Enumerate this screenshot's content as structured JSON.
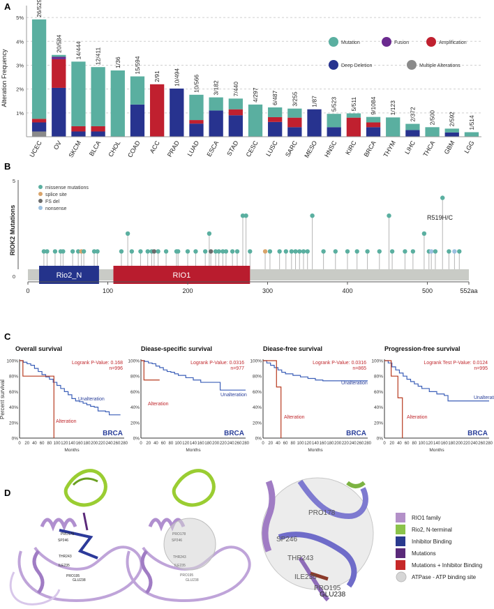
{
  "panel_labels": {
    "a": "A",
    "b": "B",
    "c": "C",
    "d": "D"
  },
  "colors": {
    "mutation": "#5aafa0",
    "fusion": "#6b2a8f",
    "amplification": "#c0202f",
    "deep_deletion": "#27338f",
    "multiple": "#8a8a8a",
    "alteration_line": "#b73a1f",
    "unalteration_line": "#3b5fb8",
    "missense": "#5aafa0",
    "splice": "#d9a46b",
    "fsdel": "#6b6b6b",
    "nonsense": "#9cc0e0",
    "rio2_domain": "#24338b",
    "rio1_domain": "#b91c2e",
    "protein_bar": "#c9cbc6"
  },
  "chart_data": [
    {
      "type": "bar",
      "id": "alteration-frequency",
      "ylabel": "Alteration Frequency",
      "ylim": [
        0,
        5.5
      ],
      "yticks": [
        "1%",
        "2%",
        "3%",
        "4%",
        "5%"
      ],
      "grid": true,
      "legend": [
        "Mutation",
        "Fusion",
        "Amplification",
        "Deep Deletion",
        "Multiple Alterations"
      ],
      "categories": [
        "UCEC",
        "OV",
        "SKCM",
        "BLCA",
        "CHOL",
        "COAD",
        "ACC",
        "PRAD",
        "LUAD",
        "ESCA",
        "STAD",
        "CESC",
        "LUSC",
        "SARC",
        "MESO",
        "HNSC",
        "KIRC",
        "BRCA",
        "THYM",
        "LIHC",
        "THCA",
        "GBM",
        "LGG"
      ],
      "counts": [
        "26/529",
        "20/584",
        "14/444",
        "12/411",
        "1/36",
        "15/594",
        "2/91",
        "10/494",
        "10/566",
        "3/182",
        "7/440",
        "4/297",
        "6/487",
        "3/255",
        "1/87",
        "5/523",
        "5/511",
        "9/1084",
        "1/123",
        "2/372",
        "2/500",
        "2/592",
        "1/514"
      ],
      "series": [
        {
          "name": "Multiple Alterations",
          "values": [
            0.22,
            0,
            0,
            0,
            0,
            0,
            0,
            0,
            0,
            0,
            0,
            0,
            0,
            0,
            0,
            0,
            0,
            0,
            0,
            0,
            0,
            0,
            0
          ]
        },
        {
          "name": "Deep Deletion",
          "values": [
            0.38,
            2.05,
            0.22,
            0.22,
            0,
            1.35,
            0,
            2.02,
            0.55,
            1.1,
            0.9,
            0,
            0.62,
            0.4,
            1.15,
            0.4,
            0,
            0.4,
            0,
            0.28,
            0,
            0.18,
            0
          ]
        },
        {
          "name": "Amplification",
          "values": [
            0.15,
            1.2,
            0.22,
            0.22,
            0,
            0,
            2.2,
            0,
            0.15,
            0,
            0.25,
            0,
            0.2,
            0.4,
            0,
            0,
            0.8,
            0.2,
            0,
            0,
            0,
            0,
            0
          ]
        },
        {
          "name": "Fusion",
          "values": [
            0,
            0.1,
            0,
            0,
            0,
            0,
            0,
            0,
            0,
            0,
            0,
            0,
            0,
            0,
            0,
            0,
            0,
            0,
            0,
            0,
            0,
            0,
            0
          ]
        },
        {
          "name": "Mutation",
          "values": [
            4.17,
            0.08,
            2.71,
            2.48,
            2.78,
            1.18,
            0,
            0,
            1.06,
            0.55,
            0.45,
            1.35,
            0.41,
            0.38,
            0,
            0.56,
            0.18,
            0.23,
            0.81,
            0.26,
            0.4,
            0.16,
            0.19
          ]
        }
      ]
    },
    {
      "type": "scatter",
      "id": "riok2-lollipop",
      "ylabel": "RIOK2 Mutations",
      "ylim": [
        0,
        5
      ],
      "xlim": [
        0,
        552
      ],
      "xticks": [
        "0",
        "100",
        "200",
        "300",
        "400",
        "500",
        "552aa"
      ],
      "ymax_label": "5",
      "ymin_label": "0",
      "legend": [
        "missense mutations",
        "splice site",
        "FS del",
        "nonsense"
      ],
      "annotation": "R519H/C",
      "domains": [
        {
          "name": "Rio2_N",
          "start": 14,
          "end": 89
        },
        {
          "name": "RIO1",
          "start": 107,
          "end": 278
        }
      ],
      "points": [
        {
          "pos": 20,
          "count": 1,
          "kind": "missense"
        },
        {
          "pos": 24,
          "count": 1,
          "kind": "missense"
        },
        {
          "pos": 34,
          "count": 1,
          "kind": "missense"
        },
        {
          "pos": 41,
          "count": 1,
          "kind": "missense"
        },
        {
          "pos": 44,
          "count": 1,
          "kind": "missense"
        },
        {
          "pos": 56,
          "count": 1,
          "kind": "missense"
        },
        {
          "pos": 63,
          "count": 1,
          "kind": "missense"
        },
        {
          "pos": 67,
          "count": 1,
          "kind": "splice"
        },
        {
          "pos": 70,
          "count": 1,
          "kind": "missense"
        },
        {
          "pos": 83,
          "count": 1,
          "kind": "missense"
        },
        {
          "pos": 87,
          "count": 1,
          "kind": "missense"
        },
        {
          "pos": 117,
          "count": 1,
          "kind": "missense"
        },
        {
          "pos": 125,
          "count": 2,
          "kind": "missense"
        },
        {
          "pos": 130,
          "count": 1,
          "kind": "missense"
        },
        {
          "pos": 141,
          "count": 1,
          "kind": "missense"
        },
        {
          "pos": 150,
          "count": 1,
          "kind": "missense"
        },
        {
          "pos": 155,
          "count": 1,
          "kind": "missense"
        },
        {
          "pos": 158,
          "count": 1,
          "kind": "fsdel"
        },
        {
          "pos": 163,
          "count": 1,
          "kind": "missense"
        },
        {
          "pos": 173,
          "count": 1,
          "kind": "missense"
        },
        {
          "pos": 186,
          "count": 1,
          "kind": "missense"
        },
        {
          "pos": 188,
          "count": 1,
          "kind": "missense"
        },
        {
          "pos": 200,
          "count": 1,
          "kind": "missense"
        },
        {
          "pos": 210,
          "count": 1,
          "kind": "missense"
        },
        {
          "pos": 222,
          "count": 1,
          "kind": "missense"
        },
        {
          "pos": 227,
          "count": 2,
          "kind": "missense"
        },
        {
          "pos": 229,
          "count": 1,
          "kind": "fsdel"
        },
        {
          "pos": 235,
          "count": 1,
          "kind": "missense"
        },
        {
          "pos": 239,
          "count": 1,
          "kind": "missense"
        },
        {
          "pos": 244,
          "count": 1,
          "kind": "missense"
        },
        {
          "pos": 248,
          "count": 1,
          "kind": "missense"
        },
        {
          "pos": 256,
          "count": 1,
          "kind": "missense"
        },
        {
          "pos": 262,
          "count": 1,
          "kind": "missense"
        },
        {
          "pos": 269,
          "count": 3,
          "kind": "missense"
        },
        {
          "pos": 273,
          "count": 3,
          "kind": "missense"
        },
        {
          "pos": 278,
          "count": 1,
          "kind": "missense"
        },
        {
          "pos": 297,
          "count": 1,
          "kind": "splice"
        },
        {
          "pos": 303,
          "count": 1,
          "kind": "missense"
        },
        {
          "pos": 315,
          "count": 1,
          "kind": "missense"
        },
        {
          "pos": 323,
          "count": 1,
          "kind": "missense"
        },
        {
          "pos": 330,
          "count": 1,
          "kind": "missense"
        },
        {
          "pos": 335,
          "count": 1,
          "kind": "missense"
        },
        {
          "pos": 340,
          "count": 1,
          "kind": "missense"
        },
        {
          "pos": 345,
          "count": 1,
          "kind": "missense"
        },
        {
          "pos": 350,
          "count": 1,
          "kind": "missense"
        },
        {
          "pos": 356,
          "count": 3,
          "kind": "missense"
        },
        {
          "pos": 370,
          "count": 1,
          "kind": "missense"
        },
        {
          "pos": 385,
          "count": 1,
          "kind": "missense"
        },
        {
          "pos": 400,
          "count": 1,
          "kind": "missense"
        },
        {
          "pos": 412,
          "count": 1,
          "kind": "missense"
        },
        {
          "pos": 425,
          "count": 1,
          "kind": "missense"
        },
        {
          "pos": 440,
          "count": 1,
          "kind": "missense"
        },
        {
          "pos": 452,
          "count": 3,
          "kind": "missense"
        },
        {
          "pos": 456,
          "count": 1,
          "kind": "missense"
        },
        {
          "pos": 472,
          "count": 1,
          "kind": "missense"
        },
        {
          "pos": 482,
          "count": 1,
          "kind": "missense"
        },
        {
          "pos": 496,
          "count": 2,
          "kind": "missense"
        },
        {
          "pos": 502,
          "count": 1,
          "kind": "missense"
        },
        {
          "pos": 505,
          "count": 1,
          "kind": "nonsense"
        },
        {
          "pos": 510,
          "count": 1,
          "kind": "missense"
        },
        {
          "pos": 519,
          "count": 4,
          "kind": "missense"
        },
        {
          "pos": 527,
          "count": 1,
          "kind": "missense"
        },
        {
          "pos": 534,
          "count": 1,
          "kind": "nonsense"
        },
        {
          "pos": 540,
          "count": 1,
          "kind": "missense"
        }
      ]
    },
    {
      "type": "line",
      "id": "km-overall",
      "title": "Overall survival",
      "pvalue": "Logrank P-Value: 0.168",
      "n": "n=996",
      "dataset": "BRCA",
      "ylabel": "Percent survival",
      "xlabel": "Months",
      "show_ylabel": true,
      "xlim": [
        0,
        280
      ],
      "xticks": [
        "0",
        "20",
        "40",
        "60",
        "80",
        "100",
        "120",
        "140",
        "160",
        "180",
        "200",
        "220",
        "240",
        "260",
        "280"
      ],
      "yticks": [
        "0%",
        "20%",
        "40%",
        "60%",
        "80%",
        "100%"
      ],
      "series": [
        {
          "name": "Unalteration",
          "x": [
            0,
            10,
            20,
            30,
            40,
            50,
            60,
            70,
            80,
            90,
            100,
            110,
            120,
            130,
            140,
            150,
            160,
            170,
            180,
            190,
            200,
            210,
            220,
            230,
            240,
            250,
            260,
            270
          ],
          "y": [
            100,
            98,
            96,
            94,
            90,
            86,
            82,
            79,
            76,
            72,
            68,
            64,
            60,
            56,
            51,
            48,
            47,
            45,
            43,
            41,
            40,
            35,
            35,
            34,
            30,
            30,
            30,
            30
          ]
        },
        {
          "name": "Alteration",
          "x": [
            0,
            9,
            9,
            92,
            92
          ],
          "y": [
            100,
            100,
            80,
            80,
            0
          ]
        }
      ],
      "labels": {
        "unalt": "Unalteration",
        "alt": "Alteration"
      }
    },
    {
      "type": "line",
      "id": "km-disease-specific",
      "title": "Diease-specific survival",
      "pvalue": "Logrank P-Value: 0.0316",
      "n": "n=977",
      "dataset": "BRCA",
      "xlabel": "Months",
      "show_ylabel": false,
      "xlim": [
        0,
        280
      ],
      "xticks": [
        "0",
        "20",
        "40",
        "60",
        "80",
        "100",
        "120",
        "140",
        "160",
        "180",
        "200",
        "220",
        "240",
        "260",
        "280"
      ],
      "yticks": [
        "0%",
        "20%",
        "40%",
        "60%",
        "80%",
        "100%"
      ],
      "series": [
        {
          "name": "Unalteration",
          "x": [
            0,
            10,
            20,
            30,
            40,
            50,
            60,
            70,
            80,
            90,
            100,
            120,
            140,
            160,
            180,
            200,
            212,
            212,
            280
          ],
          "y": [
            100,
            99,
            97,
            96,
            93,
            91,
            88,
            86,
            85,
            83,
            81,
            78,
            75,
            72,
            72,
            72,
            72,
            62,
            62
          ]
        },
        {
          "name": "Alteration",
          "x": [
            0,
            8,
            8,
            50
          ],
          "y": [
            100,
            100,
            75,
            75
          ]
        }
      ],
      "labels": {
        "unalt": "Unalteration",
        "alt": "Alteration"
      }
    },
    {
      "type": "line",
      "id": "km-disease-free",
      "title": "Diease-free survival",
      "pvalue": "Logrank P-Value: 0.0316",
      "n": "n=865",
      "dataset": "BRCA",
      "xlabel": "Months",
      "show_ylabel": false,
      "xlim": [
        0,
        280
      ],
      "xticks": [
        "0",
        "20",
        "40",
        "60",
        "80",
        "100",
        "120",
        "140",
        "160",
        "180",
        "200",
        "220",
        "240",
        "260",
        "280"
      ],
      "yticks": [
        "0%",
        "20%",
        "40%",
        "60%",
        "80%",
        "100%"
      ],
      "series": [
        {
          "name": "Unalteration",
          "x": [
            0,
            10,
            20,
            30,
            40,
            50,
            60,
            80,
            100,
            120,
            140,
            160,
            180,
            200,
            220,
            240,
            260,
            280
          ],
          "y": [
            100,
            97,
            94,
            91,
            88,
            85,
            83,
            81,
            79,
            77,
            75,
            74,
            74,
            74,
            74,
            74,
            74,
            74
          ]
        },
        {
          "name": "Alteration",
          "x": [
            0,
            36,
            36,
            48,
            48
          ],
          "y": [
            100,
            100,
            66,
            66,
            0
          ]
        }
      ],
      "labels": {
        "unalt": "Unalteration",
        "alt": "Alteration"
      }
    },
    {
      "type": "line",
      "id": "km-progression-free",
      "title": "Progression-free survival",
      "pvalue": "Logrank Test P-Value: 0.0124",
      "n": "n=995",
      "dataset": "BRCA",
      "xlabel": "Months",
      "show_ylabel": false,
      "xlim": [
        0,
        280
      ],
      "xticks": [
        "0",
        "20",
        "40",
        "60",
        "80",
        "100",
        "120",
        "140",
        "160",
        "180",
        "200",
        "220",
        "240",
        "260",
        "280"
      ],
      "yticks": [
        "0%",
        "20%",
        "40%",
        "60%",
        "80%",
        "100%"
      ],
      "series": [
        {
          "name": "Unalteration",
          "x": [
            0,
            10,
            20,
            30,
            40,
            50,
            60,
            70,
            80,
            90,
            100,
            120,
            140,
            160,
            170,
            170,
            280
          ],
          "y": [
            100,
            97,
            92,
            88,
            84,
            80,
            76,
            73,
            70,
            67,
            64,
            60,
            57,
            55,
            55,
            48,
            48
          ]
        },
        {
          "name": "Alteration",
          "x": [
            0,
            18,
            18,
            36,
            36,
            48,
            48
          ],
          "y": [
            100,
            100,
            80,
            80,
            52,
            52,
            0
          ]
        }
      ],
      "labels": {
        "unalt": "Unalteration",
        "alt": "Alteration"
      }
    }
  ],
  "structure": {
    "legend": [
      "RIO1 family",
      "Rio2, N-terminal",
      "Inhibitor Binding",
      "Mutations",
      "Mutations + Inhibitor Binding",
      "ATPase - ATP binding site"
    ],
    "legend_colors": [
      "#b390c8",
      "#8bc34a",
      "#2a3a8f",
      "#5a2a7a",
      "#c62828",
      "#d6d6d6"
    ],
    "residues_small": [
      "PRO178",
      "SP246",
      "THR243",
      "ILE235",
      "PRO195",
      "GLU238"
    ],
    "residues_zoom": [
      "PRO178",
      "SP246",
      "THR243",
      "ILE235",
      "PRO195",
      "GLU238"
    ]
  }
}
